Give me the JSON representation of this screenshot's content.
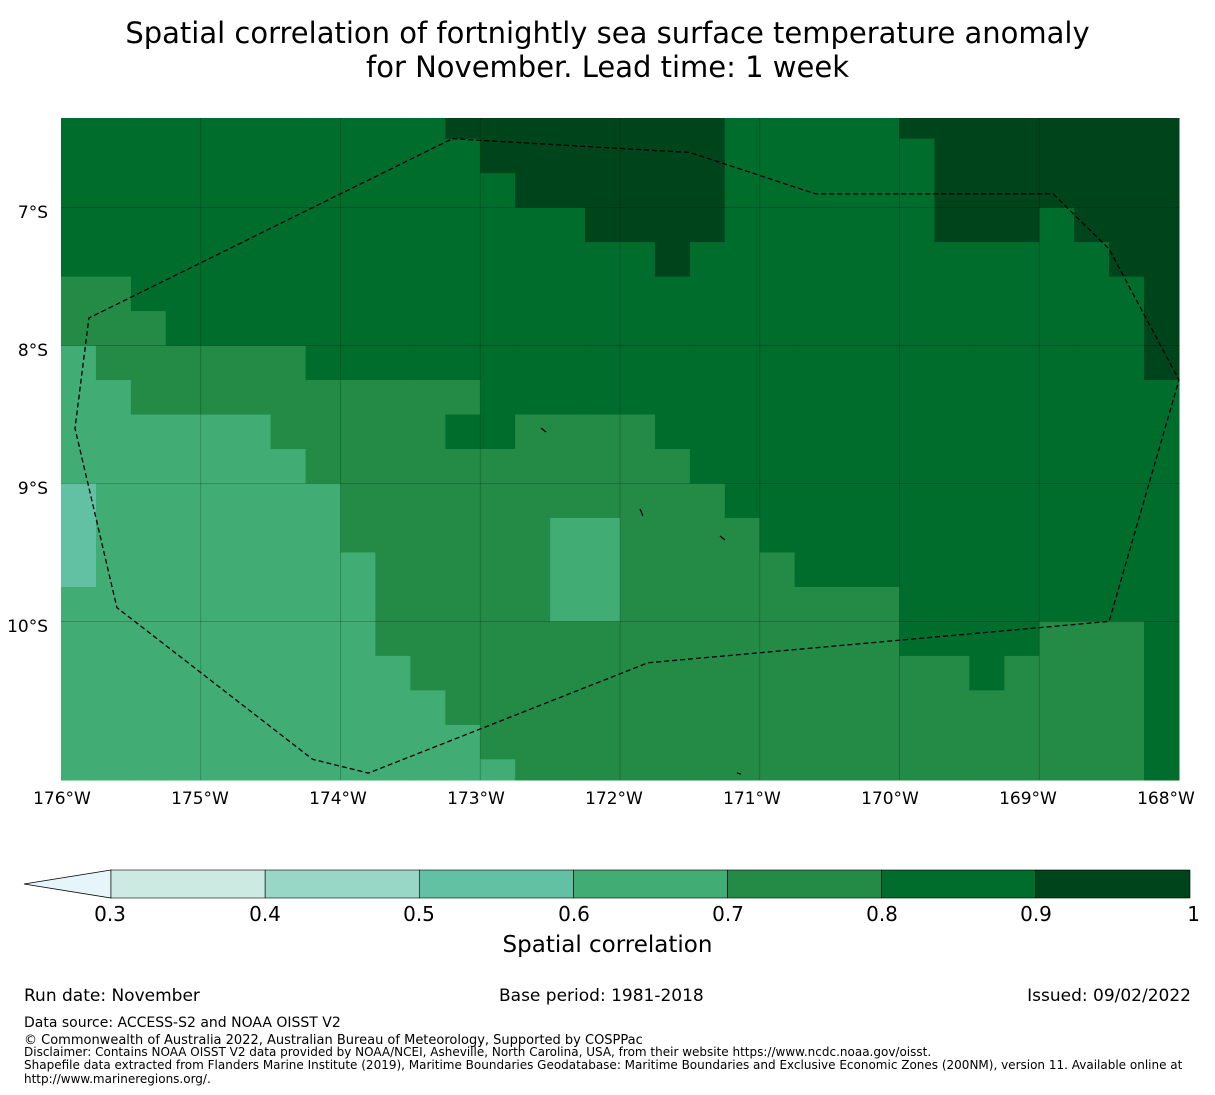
{
  "title_line1": "Spatial correlation of fortnightly sea surface temperature anomaly",
  "title_line2": "for November. Lead time: 1 week",
  "map": {
    "lon_labels": [
      "176°W",
      "175°W",
      "174°W",
      "173°W",
      "172°W",
      "171°W",
      "170°W",
      "169°W",
      "168°W"
    ],
    "lat_labels": [
      "7°S",
      "8°S",
      "9°S",
      "10°S"
    ],
    "lon_range": [
      -176,
      -168
    ],
    "lat_range": [
      -11.15,
      -6.35
    ],
    "grid_columns": [
      {
        "from": -176.0,
        "to": -175.75,
        "bands": [
          [
            -6.35,
            -7.5,
            0.85
          ],
          [
            -7.5,
            -8.0,
            0.75
          ],
          [
            -8.0,
            -8.25,
            0.65
          ],
          [
            -8.25,
            -9.0,
            0.65
          ],
          [
            -9.0,
            -9.75,
            0.55
          ],
          [
            -9.75,
            -11.15,
            0.65
          ]
        ]
      },
      {
        "from": -175.75,
        "to": -175.5,
        "bands": [
          [
            -6.35,
            -7.5,
            0.85
          ],
          [
            -7.5,
            -8.0,
            0.75
          ],
          [
            -8.0,
            -8.25,
            0.75
          ],
          [
            -8.25,
            -11.15,
            0.65
          ]
        ]
      },
      {
        "from": -175.5,
        "to": -175.25,
        "bands": [
          [
            -6.35,
            -7.75,
            0.85
          ],
          [
            -7.75,
            -8.0,
            0.75
          ],
          [
            -8.0,
            -8.5,
            0.75
          ],
          [
            -8.5,
            -11.15,
            0.65
          ]
        ]
      },
      {
        "from": -175.25,
        "to": -174.5,
        "bands": [
          [
            -6.35,
            -8.0,
            0.85
          ],
          [
            -8.0,
            -8.5,
            0.75
          ],
          [
            -8.5,
            -11.15,
            0.65
          ]
        ]
      },
      {
        "from": -174.5,
        "to": -174.25,
        "bands": [
          [
            -6.35,
            -8.0,
            0.85
          ],
          [
            -8.0,
            -8.25,
            0.75
          ],
          [
            -8.25,
            -8.75,
            0.75
          ],
          [
            -8.75,
            -11.15,
            0.65
          ]
        ]
      },
      {
        "from": -174.25,
        "to": -174.0,
        "bands": [
          [
            -6.35,
            -8.25,
            0.85
          ],
          [
            -8.25,
            -9.0,
            0.75
          ],
          [
            -9.0,
            -11.15,
            0.65
          ]
        ]
      },
      {
        "from": -174.0,
        "to": -173.75,
        "bands": [
          [
            -6.35,
            -8.25,
            0.85
          ],
          [
            -8.25,
            -9.5,
            0.75
          ],
          [
            -9.5,
            -11.15,
            0.65
          ]
        ]
      },
      {
        "from": -173.75,
        "to": -173.5,
        "bands": [
          [
            -6.35,
            -8.25,
            0.85
          ],
          [
            -8.25,
            -10.25,
            0.75
          ],
          [
            -10.25,
            -11.15,
            0.65
          ]
        ]
      },
      {
        "from": -173.5,
        "to": -173.25,
        "bands": [
          [
            -6.35,
            -8.25,
            0.85
          ],
          [
            -8.25,
            -10.5,
            0.75
          ],
          [
            -10.5,
            -11.15,
            0.65
          ]
        ]
      },
      {
        "from": -173.25,
        "to": -173.0,
        "bands": [
          [
            -6.35,
            -6.5,
            0.95
          ],
          [
            -6.5,
            -8.25,
            0.85
          ],
          [
            -8.25,
            -8.5,
            0.75
          ],
          [
            -8.5,
            -8.75,
            0.85
          ],
          [
            -8.75,
            -10.75,
            0.75
          ],
          [
            -10.75,
            -11.15,
            0.65
          ]
        ]
      },
      {
        "from": -173.0,
        "to": -172.75,
        "bands": [
          [
            -6.35,
            -6.75,
            0.95
          ],
          [
            -6.75,
            -8.5,
            0.85
          ],
          [
            -8.5,
            -8.75,
            0.85
          ],
          [
            -8.75,
            -11.0,
            0.75
          ],
          [
            -11.0,
            -11.15,
            0.65
          ]
        ]
      },
      {
        "from": -172.75,
        "to": -172.5,
        "bands": [
          [
            -6.35,
            -7.0,
            0.95
          ],
          [
            -7.0,
            -8.5,
            0.85
          ],
          [
            -8.5,
            -11.15,
            0.75
          ]
        ]
      },
      {
        "from": -172.5,
        "to": -172.25,
        "bands": [
          [
            -6.35,
            -7.0,
            0.95
          ],
          [
            -7.0,
            -8.5,
            0.85
          ],
          [
            -8.5,
            -9.25,
            0.75
          ],
          [
            -9.25,
            -10.0,
            0.65
          ],
          [
            -10.0,
            -11.15,
            0.75
          ]
        ]
      },
      {
        "from": -172.25,
        "to": -172.0,
        "bands": [
          [
            -6.35,
            -7.25,
            0.95
          ],
          [
            -7.25,
            -8.5,
            0.85
          ],
          [
            -8.5,
            -9.25,
            0.75
          ],
          [
            -9.25,
            -10.0,
            0.65
          ],
          [
            -10.0,
            -11.15,
            0.75
          ]
        ]
      },
      {
        "from": -172.0,
        "to": -171.75,
        "bands": [
          [
            -6.35,
            -7.25,
            0.95
          ],
          [
            -7.25,
            -8.5,
            0.85
          ],
          [
            -8.5,
            -11.15,
            0.75
          ]
        ]
      },
      {
        "from": -171.75,
        "to": -171.5,
        "bands": [
          [
            -6.35,
            -7.5,
            0.95
          ],
          [
            -7.5,
            -8.75,
            0.85
          ],
          [
            -8.75,
            -11.15,
            0.75
          ]
        ]
      },
      {
        "from": -171.5,
        "to": -171.25,
        "bands": [
          [
            -6.35,
            -7.25,
            0.95
          ],
          [
            -7.25,
            -9.0,
            0.85
          ],
          [
            -9.0,
            -11.15,
            0.75
          ]
        ]
      },
      {
        "from": -171.25,
        "to": -171.0,
        "bands": [
          [
            -6.35,
            -9.25,
            0.85
          ],
          [
            -9.25,
            -11.15,
            0.75
          ]
        ]
      },
      {
        "from": -171.0,
        "to": -170.75,
        "bands": [
          [
            -6.35,
            -9.5,
            0.85
          ],
          [
            -9.5,
            -11.15,
            0.75
          ]
        ]
      },
      {
        "from": -170.75,
        "to": -170.5,
        "bands": [
          [
            -6.35,
            -9.75,
            0.85
          ],
          [
            -9.75,
            -11.15,
            0.75
          ]
        ]
      },
      {
        "from": -170.5,
        "to": -170.0,
        "bands": [
          [
            -6.35,
            -9.75,
            0.85
          ],
          [
            -9.75,
            -11.15,
            0.75
          ]
        ]
      },
      {
        "from": -170.0,
        "to": -169.75,
        "bands": [
          [
            -6.35,
            -6.5,
            0.95
          ],
          [
            -6.5,
            -10.25,
            0.85
          ],
          [
            -10.25,
            -11.15,
            0.75
          ]
        ]
      },
      {
        "from": -169.75,
        "to": -169.5,
        "bands": [
          [
            -6.35,
            -7.25,
            0.95
          ],
          [
            -7.25,
            -10.25,
            0.85
          ],
          [
            -10.25,
            -11.15,
            0.75
          ]
        ]
      },
      {
        "from": -169.5,
        "to": -169.25,
        "bands": [
          [
            -6.35,
            -7.25,
            0.95
          ],
          [
            -7.25,
            -10.5,
            0.85
          ],
          [
            -10.5,
            -11.15,
            0.75
          ]
        ]
      },
      {
        "from": -169.25,
        "to": -169.0,
        "bands": [
          [
            -6.35,
            -7.25,
            0.95
          ],
          [
            -7.25,
            -10.25,
            0.85
          ],
          [
            -10.25,
            -11.15,
            0.75
          ]
        ]
      },
      {
        "from": -169.0,
        "to": -168.75,
        "bands": [
          [
            -6.35,
            -7.0,
            0.95
          ],
          [
            -7.0,
            -10.0,
            0.85
          ],
          [
            -10.0,
            -11.15,
            0.75
          ]
        ]
      },
      {
        "from": -168.75,
        "to": -168.5,
        "bands": [
          [
            -6.35,
            -7.25,
            0.95
          ],
          [
            -7.25,
            -10.0,
            0.85
          ],
          [
            -10.0,
            -11.15,
            0.75
          ]
        ]
      },
      {
        "from": -168.5,
        "to": -168.25,
        "bands": [
          [
            -6.35,
            -7.5,
            0.95
          ],
          [
            -7.5,
            -10.0,
            0.85
          ],
          [
            -10.0,
            -11.15,
            0.75
          ]
        ]
      },
      {
        "from": -168.25,
        "to": -168.0,
        "bands": [
          [
            -6.35,
            -8.25,
            0.95
          ],
          [
            -8.25,
            -10.0,
            0.85
          ],
          [
            -10.0,
            -11.15,
            0.85
          ]
        ]
      }
    ],
    "eez_boundary": [
      [
        -173.2,
        -6.5
      ],
      [
        -171.5,
        -6.6
      ],
      [
        -170.6,
        -6.9
      ],
      [
        -168.9,
        -6.9
      ],
      [
        -168.5,
        -7.3
      ],
      [
        -168.0,
        -8.25
      ],
      [
        -168.5,
        -10.0
      ],
      [
        -171.8,
        -10.3
      ],
      [
        -173.8,
        -11.1
      ],
      [
        -174.2,
        -11.0
      ],
      [
        -175.6,
        -9.9
      ],
      [
        -175.9,
        -8.6
      ],
      [
        -175.8,
        -7.8
      ],
      [
        -173.2,
        -6.5
      ]
    ]
  },
  "colorbar": {
    "levels": [
      0.3,
      0.4,
      0.5,
      0.6,
      0.7,
      0.8,
      0.9,
      1
    ],
    "tick_labels": [
      "0.3",
      "0.4",
      "0.5",
      "0.6",
      "0.7",
      "0.8",
      "0.9",
      "1"
    ],
    "colors": [
      "#cceae2",
      "#98d6c6",
      "#62c1a3",
      "#41ac74",
      "#238b45",
      "#006d2c",
      "#00441b"
    ],
    "extend_color": "#e5f5f9",
    "label": "Spatial correlation"
  },
  "footer": {
    "run_date": "Run date: November",
    "base_period": "Base period: 1981-2018",
    "issued": "Issued: 09/02/2022",
    "data_source": "Data source: ACCESS-S2 and NOAA OISST V2",
    "copyright": "© Commonwealth of Australia 2022, Australian Bureau of Meteorology, Supported by COSPPac",
    "disclaimer": "Disclaimer: Contains NOAA OISST V2 data provided by NOAA/NCEI, Asheville, North Carolina, USA, from their website https://www.ncdc.noaa.gov/oisst.",
    "shapefile_line1": "Shapefile data extracted from Flanders Marine Institute (2019), Maritime Boundaries Geodatabase: Maritime Boundaries and Exclusive Economic Zones (200NM), version 11. Available online at",
    "shapefile_line2": "http://www.marineregions.org/."
  }
}
